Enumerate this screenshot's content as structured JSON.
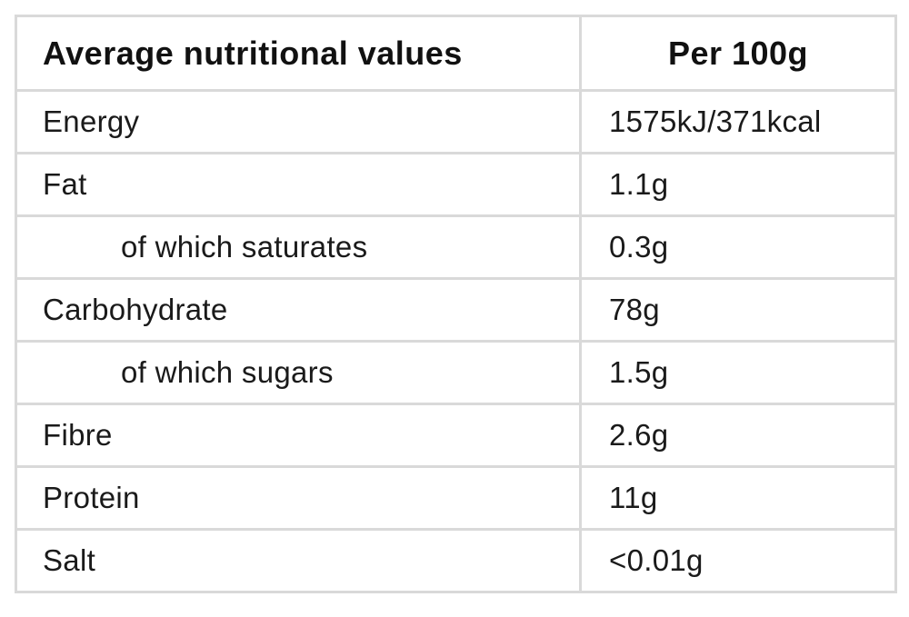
{
  "table": {
    "header": {
      "label_col": "Average nutritional values",
      "value_col": "Per 100g"
    },
    "rows": [
      {
        "label": "Energy",
        "value": "1575kJ/371kcal",
        "indent": false
      },
      {
        "label": "Fat",
        "value": "1.1g",
        "indent": false
      },
      {
        "label": "of which saturates",
        "value": "0.3g",
        "indent": true
      },
      {
        "label": "Carbohydrate",
        "value": "78g",
        "indent": false
      },
      {
        "label": "of which sugars",
        "value": "1.5g",
        "indent": true
      },
      {
        "label": "Fibre",
        "value": "2.6g",
        "indent": false
      },
      {
        "label": "Protein",
        "value": "11g",
        "indent": false
      },
      {
        "label": "Salt",
        "value": "<0.01g",
        "indent": false
      }
    ]
  },
  "colors": {
    "border": "#d9d9d9",
    "text": "#111111",
    "background": "#ffffff"
  }
}
